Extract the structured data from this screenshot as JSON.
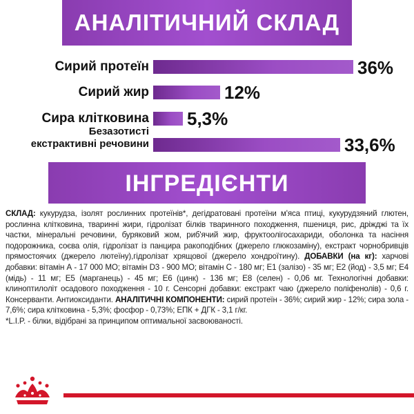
{
  "header": {
    "title": "АНАЛІТИЧНИЙ СКЛАД"
  },
  "nutrients": [
    {
      "label": "Сирий протеїн",
      "value_text": "36%",
      "value": 36
    },
    {
      "label": "Сирий жир",
      "value_text": "12%",
      "value": 12
    },
    {
      "label": "Сира клітковина",
      "value_text": "5,3%",
      "value": 5.3
    },
    {
      "label_line1": "Безазотисті",
      "label_line2": "екстрактивні речовини",
      "value_text": "33,6%",
      "value": 33.6
    }
  ],
  "ingredients_header": {
    "title": "ІНГРЕДІЄНТИ"
  },
  "composition": {
    "label1": "СКЛАД:",
    "text1": " кукурудза, ізолят рослинних протеїнів*, дегідратовані протеїни м'яса птиці, кукурудзяний глютен, рослинна клітковина, тваринні жири, гідролізат білків тваринного походження, пшениця, рис, дріжджі та їх частки, мінеральні речовини, буряковий жом, риб'ячий жир, фруктоолігосахариди, оболонка та насіння подорожника, соєва олія, гідролізат із панцира ракоподібних (джерело глюкозаміну), екстракт чорнобривців прямостоячих (джерело лютеїну),гідролізат хрящової (джерело хондроїтину).",
    "label2": "ДОБАВКИ (на кг):",
    "text2": " харчові добавки: вітамін А - 17 000 МО; вітамін D3 - 900 МО; вітамін С - 180 мг; Е1 (залізо) - 35 мг; Е2 (йод) - 3,5 мг; Е4 (мідь) - 11 мг; Е5 (марганець) - 45 мг; Е6 (цинк) - 136 мг; Е8 (селен) - 0,06 мг. Технологічні добавки: клиноптилоліт осадового походження - 10 г. Сенсорні добавки: екстракт чаю (джерело поліфенолів) - 0,6 г. Консерванти. Антиоксиданти.",
    "label3": "АНАЛІТИЧНІ КОМПОНЕНТИ:",
    "text3": " сирий протеїн - 36%; сирий жир - 12%; сира зола - 7,6%; сира клітковина - 5,3%; фосфор - 0,73%; ЕПК + ДГК - 3,1 г/кг.",
    "footnote": "*L.I.P. - білки, відібрані за принципом оптимальної засвоюваності."
  },
  "brand": {
    "logo_icon": "crown-icon",
    "accent": "#d3162a",
    "purple": "#9b4dc4"
  }
}
